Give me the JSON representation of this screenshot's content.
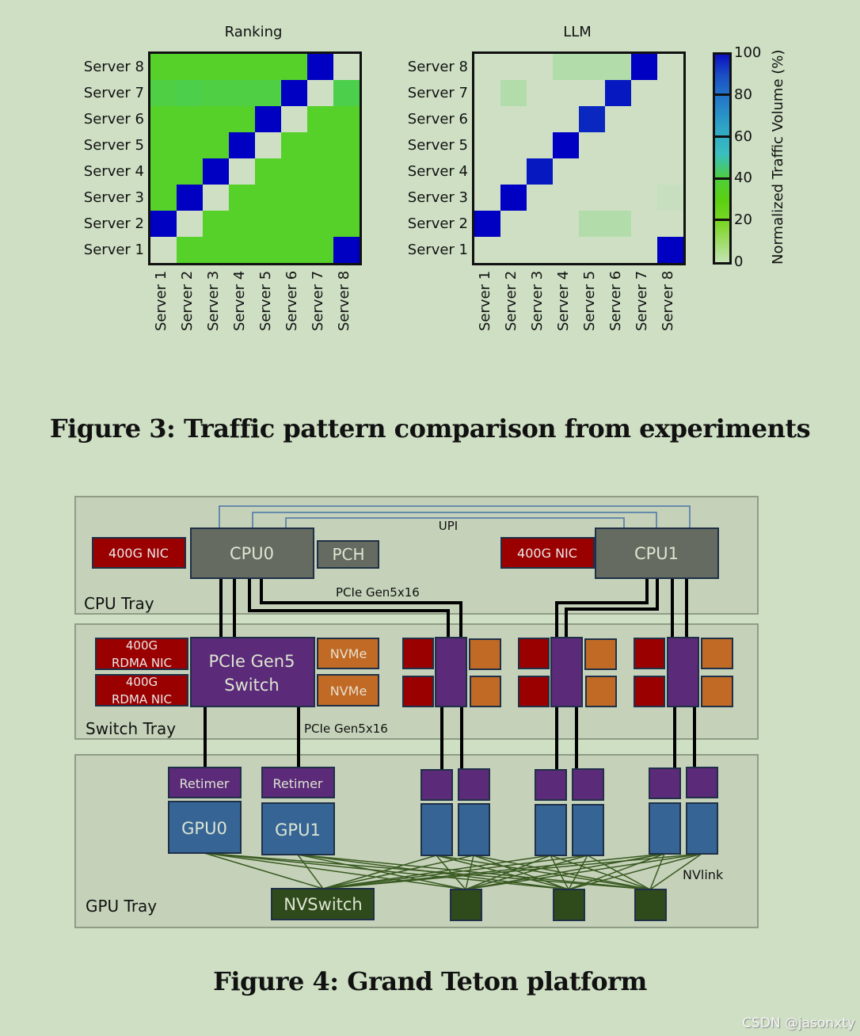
{
  "chart_data": [
    {
      "type": "heatmap",
      "title": "Ranking",
      "xlabel": "",
      "ylabel": "",
      "x": [
        "Server 1",
        "Server 2",
        "Server 3",
        "Server 4",
        "Server 5",
        "Server 6",
        "Server 7",
        "Server 8"
      ],
      "y": [
        "Server 8",
        "Server 7",
        "Server 6",
        "Server 5",
        "Server 4",
        "Server 3",
        "Server 2",
        "Server 1"
      ],
      "values": [
        [
          30,
          30,
          30,
          30,
          30,
          30,
          100,
          0
        ],
        [
          38,
          40,
          38,
          38,
          38,
          100,
          0,
          40
        ],
        [
          30,
          30,
          30,
          30,
          100,
          0,
          30,
          30
        ],
        [
          30,
          30,
          30,
          100,
          0,
          30,
          30,
          30
        ],
        [
          30,
          30,
          100,
          0,
          30,
          30,
          30,
          30
        ],
        [
          30,
          100,
          0,
          30,
          30,
          30,
          30,
          30
        ],
        [
          100,
          0,
          30,
          30,
          30,
          30,
          30,
          30
        ],
        [
          0,
          30,
          30,
          30,
          30,
          30,
          30,
          100
        ]
      ],
      "colorbar": {
        "label": "Normalized Traffic Volume (%)",
        "range": [
          0,
          100
        ],
        "ticks": [
          0,
          20,
          40,
          60,
          80,
          100
        ]
      }
    },
    {
      "type": "heatmap",
      "title": "LLM",
      "xlabel": "",
      "ylabel": "",
      "x": [
        "Server 1",
        "Server 2",
        "Server 3",
        "Server 4",
        "Server 5",
        "Server 6",
        "Server 7",
        "Server 8"
      ],
      "y": [
        "Server 8",
        "Server 7",
        "Server 6",
        "Server 5",
        "Server 4",
        "Server 3",
        "Server 2",
        "Server 1"
      ],
      "values": [
        [
          0,
          0,
          0,
          5,
          5,
          5,
          100,
          0
        ],
        [
          0,
          5,
          0,
          0,
          0,
          95,
          0,
          0
        ],
        [
          0,
          0,
          0,
          0,
          92,
          0,
          0,
          0
        ],
        [
          0,
          0,
          0,
          100,
          0,
          0,
          0,
          0
        ],
        [
          0,
          0,
          95,
          0,
          0,
          0,
          0,
          0
        ],
        [
          0,
          100,
          0,
          0,
          0,
          0,
          0,
          1
        ],
        [
          100,
          0,
          0,
          0,
          5,
          5,
          0,
          0
        ],
        [
          0,
          0,
          0,
          0,
          0,
          0,
          0,
          100
        ]
      ],
      "colorbar": {
        "label": "Normalized Traffic Volume (%)",
        "range": [
          0,
          100
        ],
        "ticks": [
          0,
          20,
          40,
          60,
          80,
          100
        ]
      }
    }
  ],
  "figure3": {
    "ranking_title": "Ranking",
    "llm_title": "LLM",
    "row_labels": [
      "Server 8",
      "Server 7",
      "Server 6",
      "Server 5",
      "Server 4",
      "Server 3",
      "Server 2",
      "Server 1"
    ],
    "col_labels": [
      "Server 1",
      "Server 2",
      "Server 3",
      "Server 4",
      "Server 5",
      "Server 6",
      "Server 7",
      "Server 8"
    ],
    "colorbar_label": "Normalized Traffic Volume (%)",
    "colorbar_ticks": [
      "100",
      "80",
      "60",
      "40",
      "20",
      "0"
    ],
    "caption": "Figure 3: Traffic pattern comparison from experiments"
  },
  "figure4": {
    "caption": "Figure 4: Grand Teton platform",
    "trays": {
      "cpu": "CPU Tray",
      "switch": "Switch Tray",
      "gpu": "GPU Tray"
    },
    "cpu0": "CPU0",
    "cpu1": "CPU1",
    "pch": "PCH",
    "nic": "400G NIC",
    "upi": "UPI",
    "pcie_label": "PCIe Gen5x16",
    "rdma_nic_line1": "400G",
    "rdma_nic_line2": "RDMA NIC",
    "pcie_switch_line1": "PCIe Gen5",
    "pcie_switch_line2": "Switch",
    "nvme": "NVMe",
    "retimer": "Retimer",
    "gpu0": "GPU0",
    "gpu1": "GPU1",
    "nvswitch": "NVSwitch",
    "nvlink": "NVlink"
  },
  "colors": {
    "background": "#cedfc4",
    "tray": "#c5d2b9",
    "cpu": "#656b60",
    "nic": "#9b0000",
    "pcie_switch": "#5b2a78",
    "nvme": "#c06a25",
    "gpu": "#366595",
    "nvswitch": "#2f4a1b",
    "upi_line": "#4a72a8",
    "heat_low": "#cedfc4",
    "heat_green": "#55d12a",
    "heat_high": "#0000c2"
  },
  "watermark": "CSDN @jasonxty"
}
